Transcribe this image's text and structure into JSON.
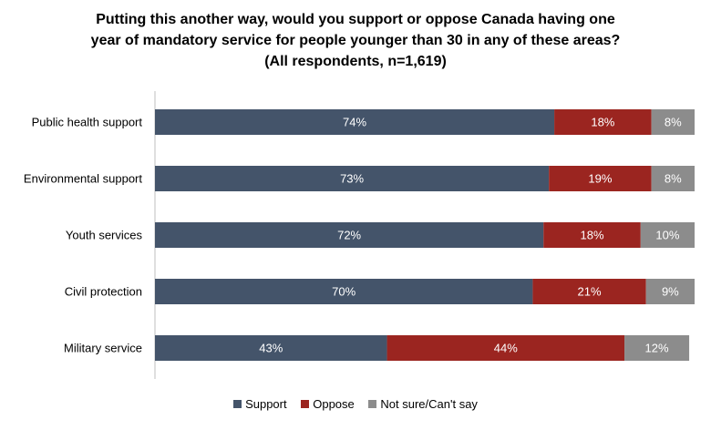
{
  "title_lines": [
    "Putting this another way, would you support or oppose Canada having one",
    "year of mandatory service for people younger than 30 in any of these areas?",
    "(All respondents, n=1,619)"
  ],
  "colors": {
    "Support": "#44546a",
    "Oppose": "#9b2520",
    "Not sure/Can't say": "#8c8c8c"
  },
  "chart_data": {
    "type": "bar",
    "orientation": "horizontal",
    "stacked": true,
    "title": "Putting this another way, would you support or oppose Canada having one year of mandatory service for people younger than 30 in any of these areas? (All respondents, n=1,619)",
    "categories": [
      "Public health support",
      "Environmental support",
      "Youth services",
      "Civil protection",
      "Military service"
    ],
    "series": [
      {
        "name": "Support",
        "values": [
          74,
          73,
          72,
          70,
          43
        ]
      },
      {
        "name": "Oppose",
        "values": [
          18,
          19,
          18,
          21,
          44
        ]
      },
      {
        "name": "Not sure/Can't say",
        "values": [
          8,
          8,
          10,
          9,
          12
        ]
      }
    ],
    "data_labels": [
      [
        "74%",
        "73%",
        "72%",
        "70%",
        "43%"
      ],
      [
        "18%",
        "19%",
        "18%",
        "21%",
        "44%"
      ],
      [
        "8%",
        "8%",
        "10%",
        "9%",
        "12%"
      ]
    ],
    "xlim": [
      0,
      100
    ],
    "grid": false,
    "legend_position": "bottom"
  }
}
